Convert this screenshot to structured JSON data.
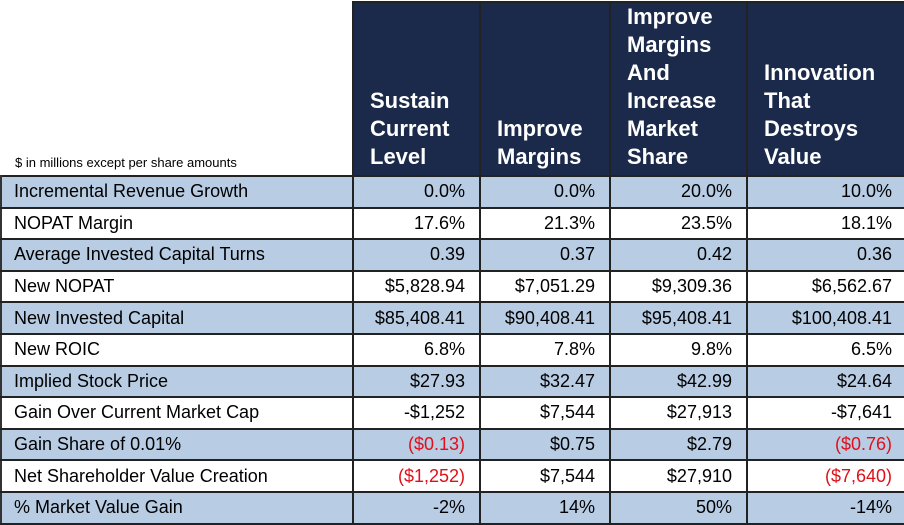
{
  "note": "$ in millions except per share amounts",
  "columns": [
    "Sustain Current Level",
    "Improve Margins",
    "Improve Margins And Increase Market Share",
    "Innovation That Destroys Value"
  ],
  "colors": {
    "header_bg": "#1b2a4b",
    "band": "#b8cce4",
    "negative": "#e0101a"
  },
  "rows": [
    {
      "label": "Incremental Revenue Growth",
      "values": [
        "0.0%",
        "0.0%",
        "20.0%",
        "10.0%"
      ]
    },
    {
      "label": "NOPAT Margin",
      "values": [
        "17.6%",
        "21.3%",
        "23.5%",
        "18.1%"
      ]
    },
    {
      "label": "Average Invested Capital Turns",
      "values": [
        "0.39",
        "0.37",
        "0.42",
        "0.36"
      ]
    },
    {
      "label": "New NOPAT",
      "values": [
        "$5,828.94",
        "$7,051.29",
        "$9,309.36",
        "$6,562.67"
      ]
    },
    {
      "label": "New Invested Capital",
      "values": [
        "$85,408.41",
        "$90,408.41",
        "$95,408.41",
        "$100,408.41"
      ]
    },
    {
      "label": "New ROIC",
      "values": [
        "6.8%",
        "7.8%",
        "9.8%",
        "6.5%"
      ]
    },
    {
      "label": "Implied Stock Price",
      "values": [
        "$27.93",
        "$32.47",
        "$42.99",
        "$24.64"
      ]
    },
    {
      "label": "Gain Over Current Market Cap",
      "values": [
        "-$1,252",
        "$7,544",
        "$27,913",
        "-$7,641"
      ]
    },
    {
      "label": "Gain Share of 0.01%",
      "values": [
        "($0.13)",
        "$0.75",
        "$2.79",
        "($0.76)"
      ]
    },
    {
      "label": "Net Shareholder Value Creation",
      "values": [
        "($1,252)",
        "$7,544",
        "$27,910",
        "($7,640)"
      ]
    },
    {
      "label": "% Market Value Gain",
      "values": [
        "-2%",
        "14%",
        "50%",
        "-14%"
      ]
    }
  ]
}
